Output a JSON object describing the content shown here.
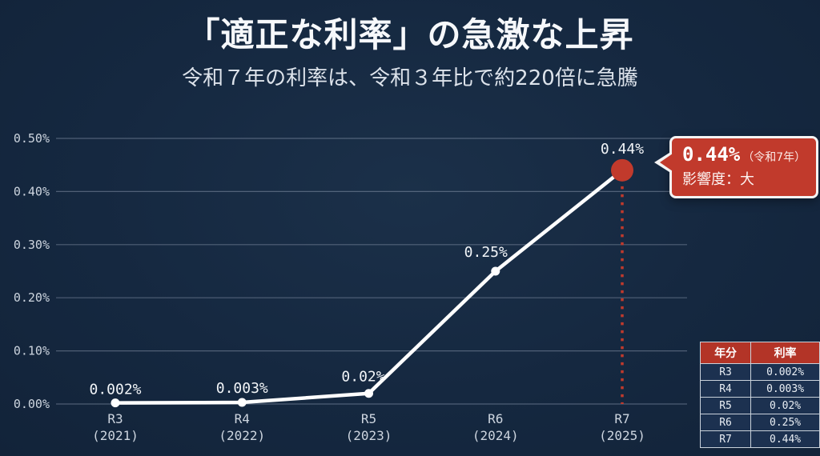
{
  "header": {
    "title": "「適正な利率」の急激な上昇",
    "subtitle": "令和７年の利率は、令和３年比で約220倍に急騰"
  },
  "chart_data": {
    "type": "line",
    "title": "「適正な利率」の急激な上昇",
    "xlabel": "",
    "ylabel": "",
    "categories": [
      "R3",
      "R4",
      "R5",
      "R6",
      "R7"
    ],
    "category_sublabels": [
      "(2021)",
      "(2022)",
      "(2023)",
      "(2024)",
      "(2025)"
    ],
    "values": [
      0.002,
      0.003,
      0.02,
      0.25,
      0.44
    ],
    "data_labels": [
      "0.002%",
      "0.003%",
      "0.02%",
      "0.25%",
      "0.44%"
    ],
    "ylim": [
      0,
      0.5
    ],
    "yticks": [
      0,
      0.1,
      0.2,
      0.3,
      0.4,
      0.5
    ],
    "ytick_labels": [
      "0.00%",
      "0.10%",
      "0.20%",
      "0.30%",
      "0.40%",
      "0.50%"
    ],
    "grid": true,
    "legend": "none",
    "line_color": "#ffffff",
    "marker_color": "#ffffff",
    "highlight_index": 4,
    "highlight_color": "#c13a2c",
    "dropline_style": "dotted"
  },
  "callout": {
    "value": "0.44%",
    "note": "（令和7年）",
    "impact": "影響度：大",
    "bg_color": "#c13a2c"
  },
  "table": {
    "headers": [
      "年分",
      "利率"
    ],
    "rows": [
      {
        "year": "R3",
        "rate": "0.002%"
      },
      {
        "year": "R4",
        "rate": "0.003%"
      },
      {
        "year": "R5",
        "rate": "0.02%"
      },
      {
        "year": "R6",
        "rate": "0.25%"
      },
      {
        "year": "R7",
        "rate": "0.44%"
      }
    ],
    "header_bg": "#b33427"
  },
  "colors": {
    "background": "#152840",
    "grid": "rgba(205,216,232,0.32)",
    "axis_text": "#cdd5df",
    "label_text": "#f2f5f8"
  }
}
